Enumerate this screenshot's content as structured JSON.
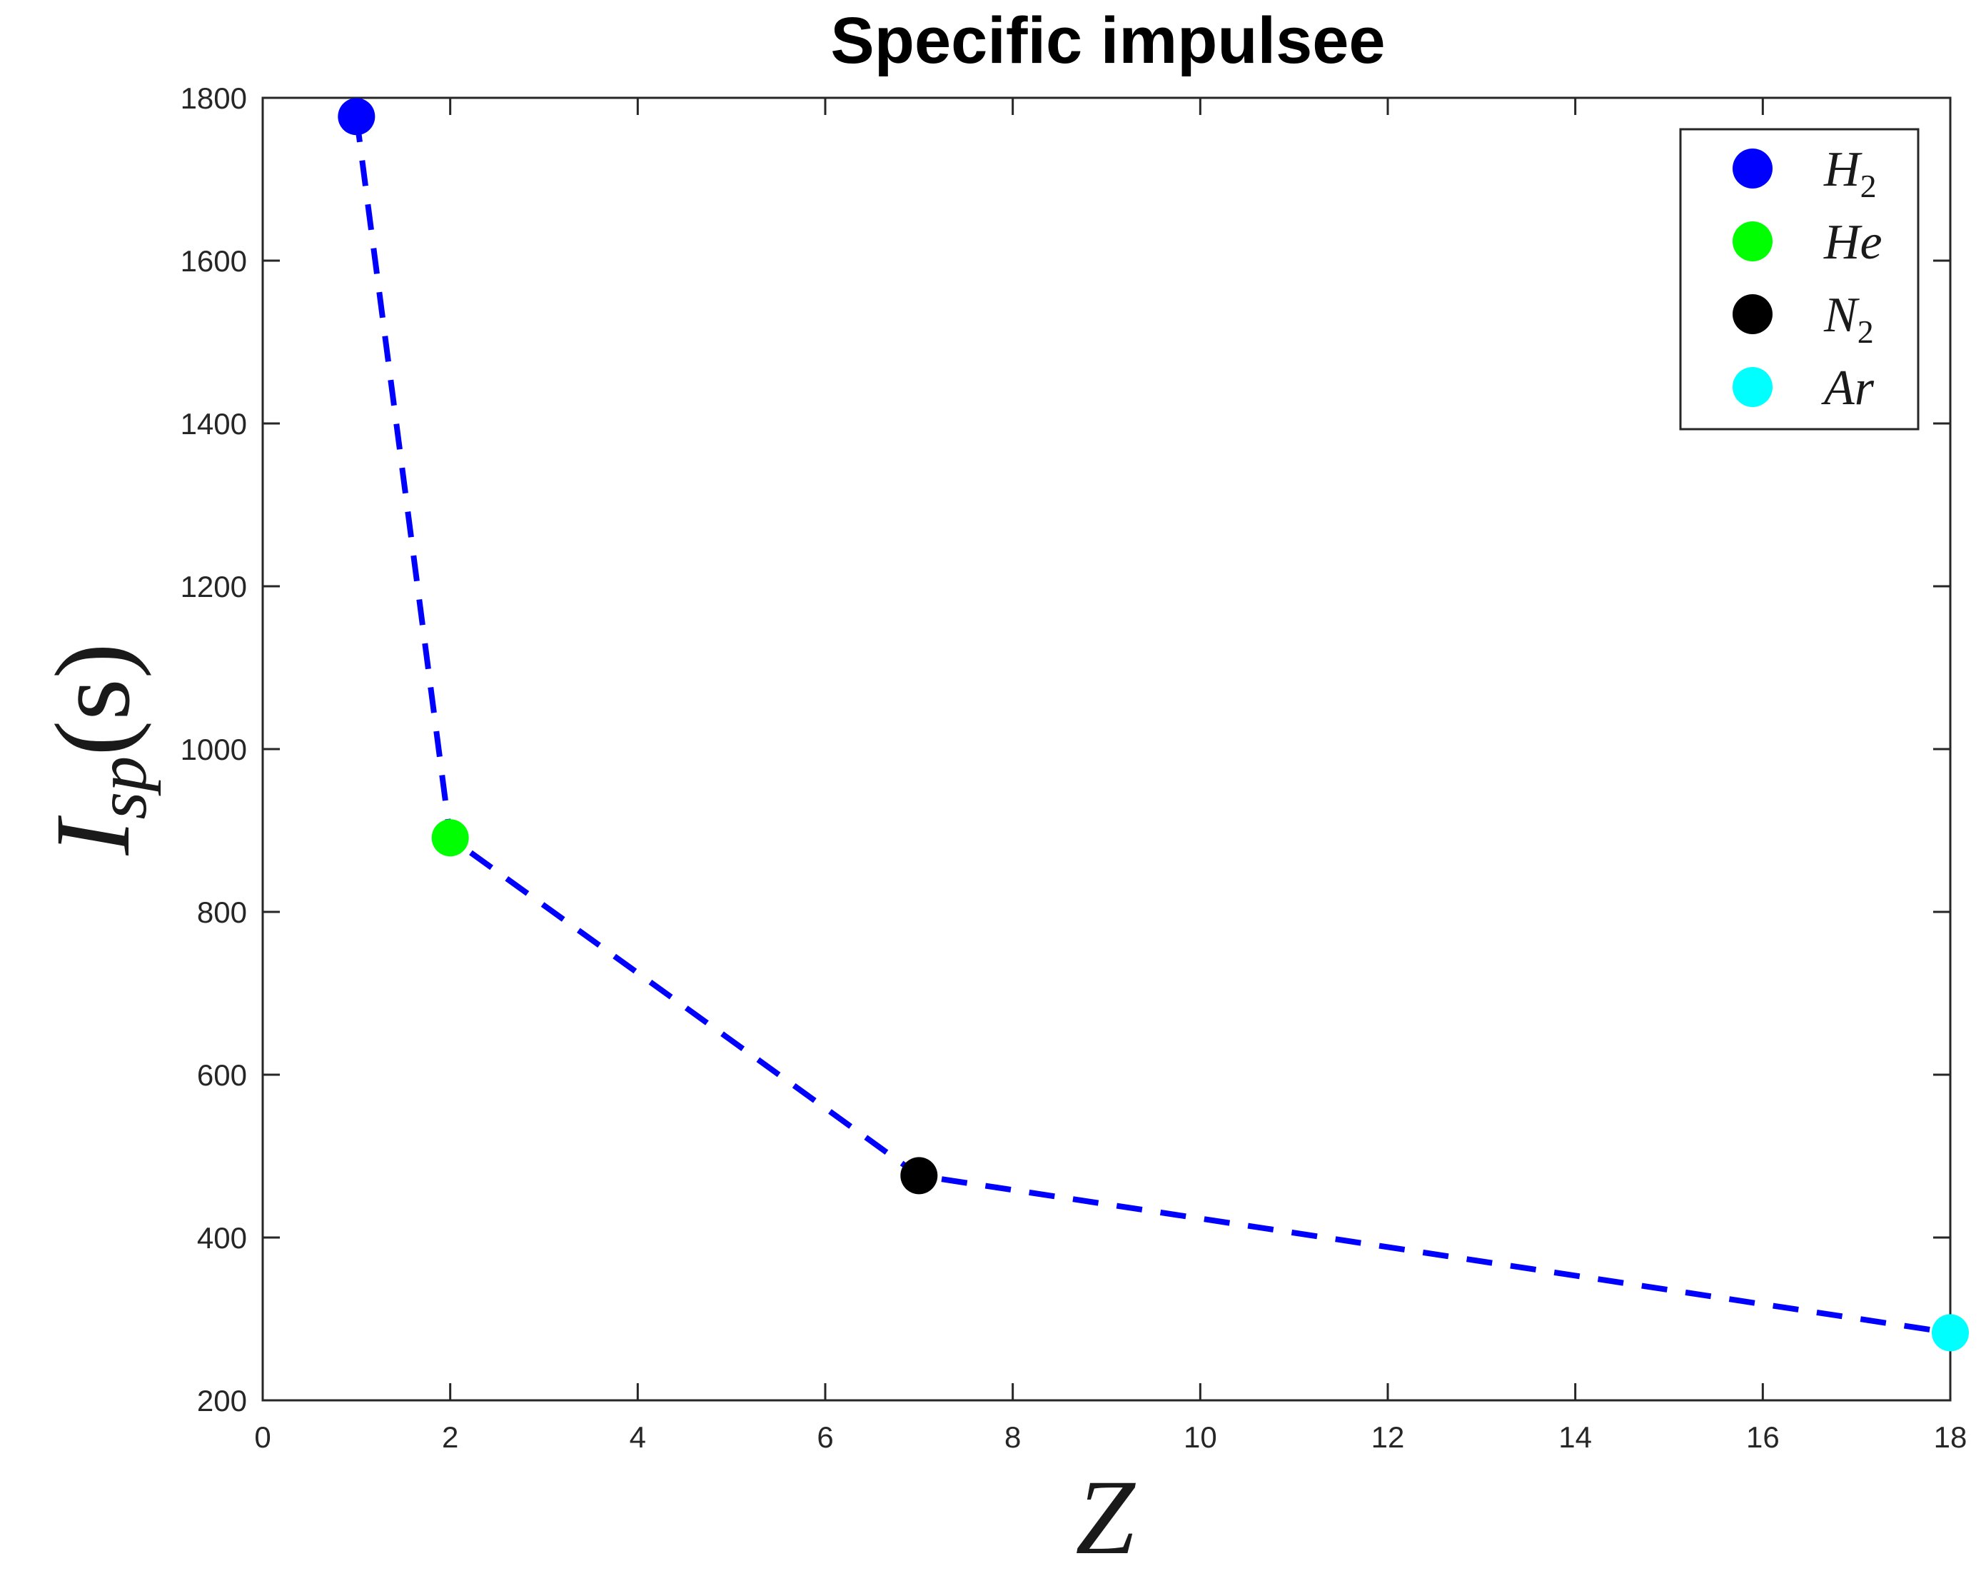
{
  "chart_data": {
    "type": "line",
    "title": "Specific impulsee",
    "xlabel": "Z",
    "ylabel": "Isp(s)",
    "ylabel_main": "I",
    "ylabel_sub": "sp",
    "ylabel_rest": "(s)",
    "xlim": [
      0,
      18
    ],
    "ylim": [
      200,
      1800
    ],
    "xticks": [
      "0",
      "2",
      "4",
      "6",
      "8",
      "10",
      "12",
      "14",
      "16",
      "18"
    ],
    "yticks": [
      "200",
      "400",
      "600",
      "800",
      "1000",
      "1200",
      "1400",
      "1600",
      "1800"
    ],
    "grid": false,
    "legend_position": "top-right",
    "line_style": "dashed",
    "line_color": "#0000ff",
    "points": [
      {
        "name": "H2",
        "label_main": "H",
        "label_sub": "2",
        "x": 1,
        "y": 1777,
        "color": "#0000ff"
      },
      {
        "name": "He",
        "label_main": "He",
        "label_sub": "",
        "x": 2,
        "y": 891,
        "color": "#00ff00"
      },
      {
        "name": "N2",
        "label_main": "N",
        "label_sub": "2",
        "x": 7,
        "y": 476,
        "color": "#000000"
      },
      {
        "name": "Ar",
        "label_main": "Ar",
        "label_sub": "",
        "x": 18,
        "y": 283,
        "color": "#00ffff"
      }
    ]
  }
}
